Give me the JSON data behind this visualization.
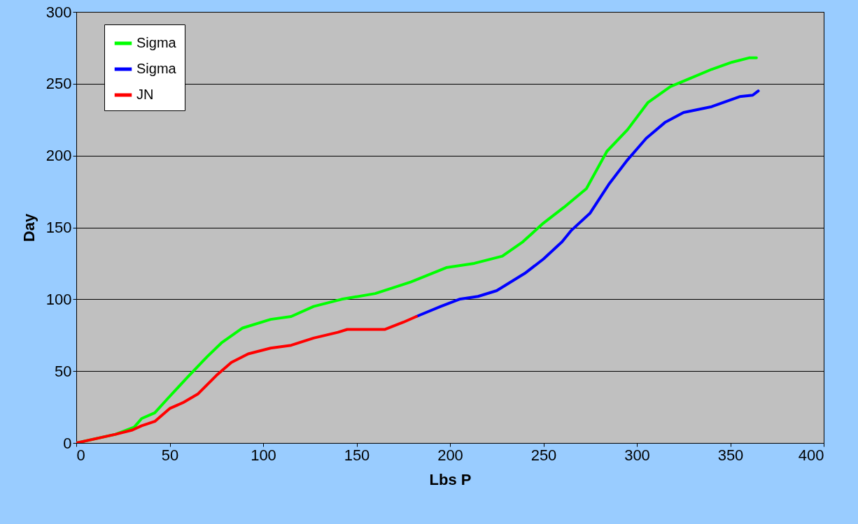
{
  "chart_data": {
    "type": "line",
    "xlabel": "Lbs P",
    "ylabel": "Day",
    "xlim": [
      0,
      400
    ],
    "xticks": [
      0,
      50,
      100,
      150,
      200,
      250,
      300,
      350,
      400
    ],
    "ylim": [
      0,
      300
    ],
    "yticks": [
      0,
      50,
      100,
      150,
      200,
      250,
      300
    ],
    "grid": "y",
    "legend": "top left",
    "line_style": "solid",
    "marker": "none",
    "series": [
      {
        "name": "Sigma",
        "color": "#00ff00",
        "x": [
          0,
          21,
          31,
          35,
          42,
          49,
          59,
          70,
          78,
          89,
          104,
          115,
          127,
          142,
          160,
          179,
          198,
          213,
          228,
          239,
          250,
          261,
          273,
          284,
          295,
          306,
          318,
          329,
          340,
          351,
          360,
          364
        ],
        "values": [
          0,
          6,
          11,
          17,
          21,
          31,
          45,
          60,
          70,
          80,
          86,
          88,
          95,
          100,
          104,
          112,
          122,
          125,
          130,
          140,
          153,
          164,
          177,
          203,
          218,
          237,
          248,
          254,
          260,
          265,
          268,
          268
        ]
      },
      {
        "name": "Sigma",
        "color": "#0000ff",
        "x": [
          182,
          195,
          205,
          215,
          225,
          240,
          250,
          260,
          265,
          275,
          285,
          295,
          305,
          315,
          325,
          340,
          355,
          362,
          365
        ],
        "values": [
          88,
          95,
          100,
          102,
          106,
          118,
          128,
          140,
          148,
          160,
          180,
          197,
          212,
          223,
          230,
          234,
          241,
          242,
          245
        ]
      },
      {
        "name": "JN",
        "color": "#ff0000",
        "x": [
          0,
          21,
          30,
          35,
          42,
          50,
          57,
          65,
          75,
          83,
          92,
          104,
          115,
          127,
          140,
          145,
          165,
          175,
          182
        ],
        "values": [
          0,
          6,
          9,
          12,
          15,
          24,
          28,
          34,
          47,
          56,
          62,
          66,
          68,
          73,
          77,
          79,
          79,
          84,
          88
        ]
      }
    ]
  }
}
